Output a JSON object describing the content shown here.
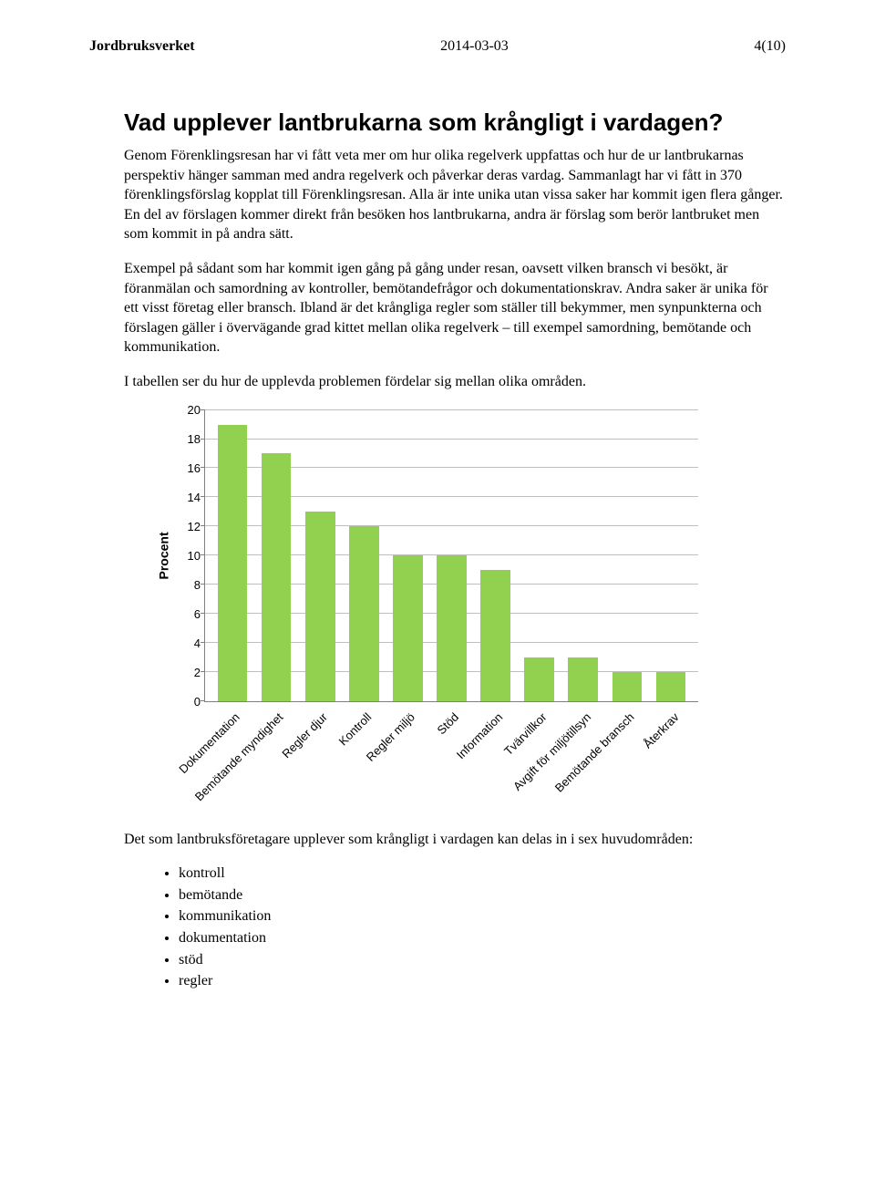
{
  "header": {
    "org": "Jordbruksverket",
    "date": "2014-03-03",
    "page": "4(10)"
  },
  "title": "Vad upplever lantbrukarna som krångligt i vardagen?",
  "paragraphs": {
    "p1": "Genom Förenklingsresan har vi fått veta mer om hur olika regelverk uppfattas och hur de ur lantbrukarnas perspektiv hänger samman med andra regelverk och påverkar deras vardag. Sammanlagt har vi fått in 370 förenklingsförslag kopplat till Förenklingsresan. Alla är inte unika utan vissa saker har kommit igen flera gånger. En del av förslagen kommer direkt från besöken hos lantbrukarna, andra är förslag som berör lantbruket men som kommit in på andra sätt.",
    "p2": "Exempel på sådant som har kommit igen gång på gång under resan, oavsett vilken bransch vi besökt, är föranmälan och samordning av kontroller, bemötandefrågor och dokumentationskrav. Andra saker är unika för ett visst företag eller bransch. Ibland är det krångliga regler som ställer till bekymmer, men synpunkterna och förslagen gäller i övervägande grad kittet mellan olika regelverk – till exempel samordning, bemötande och kommunikation.",
    "p3": "I tabellen ser du hur de upplevda problemen fördelar sig mellan olika områden.",
    "p4": "Det som lantbruksföretagare upplever som krångligt i vardagen kan delas in i sex huvudområden:"
  },
  "bullets": {
    "b0": "kontroll",
    "b1": "bemötande",
    "b2": "kommunikation",
    "b3": "dokumentation",
    "b4": "stöd",
    "b5": "regler"
  },
  "chart": {
    "type": "bar",
    "ylabel": "Procent",
    "ylim": [
      0,
      20
    ],
    "ytick_step": 2,
    "yticks": [
      "0",
      "2",
      "4",
      "6",
      "8",
      "10",
      "12",
      "14",
      "16",
      "18",
      "20"
    ],
    "categories": [
      "Dokumentation",
      "Bemötande myndighet",
      "Regler djur",
      "Kontroll",
      "Regler miljö",
      "Stöd",
      "Information",
      "Tvärvillkor",
      "Avgift för miljötillsyn",
      "Bemötande bransch",
      "Återkrav"
    ],
    "values": [
      19,
      17,
      13,
      12,
      10,
      10,
      9,
      3,
      3,
      2,
      2
    ],
    "bar_color": "#92d050",
    "grid_color": "#bfbfbf",
    "axis_color": "#808080",
    "background_color": "#ffffff",
    "label_fontsize": 13,
    "ylabel_fontsize": 14,
    "bar_width_ratio": 0.68
  }
}
